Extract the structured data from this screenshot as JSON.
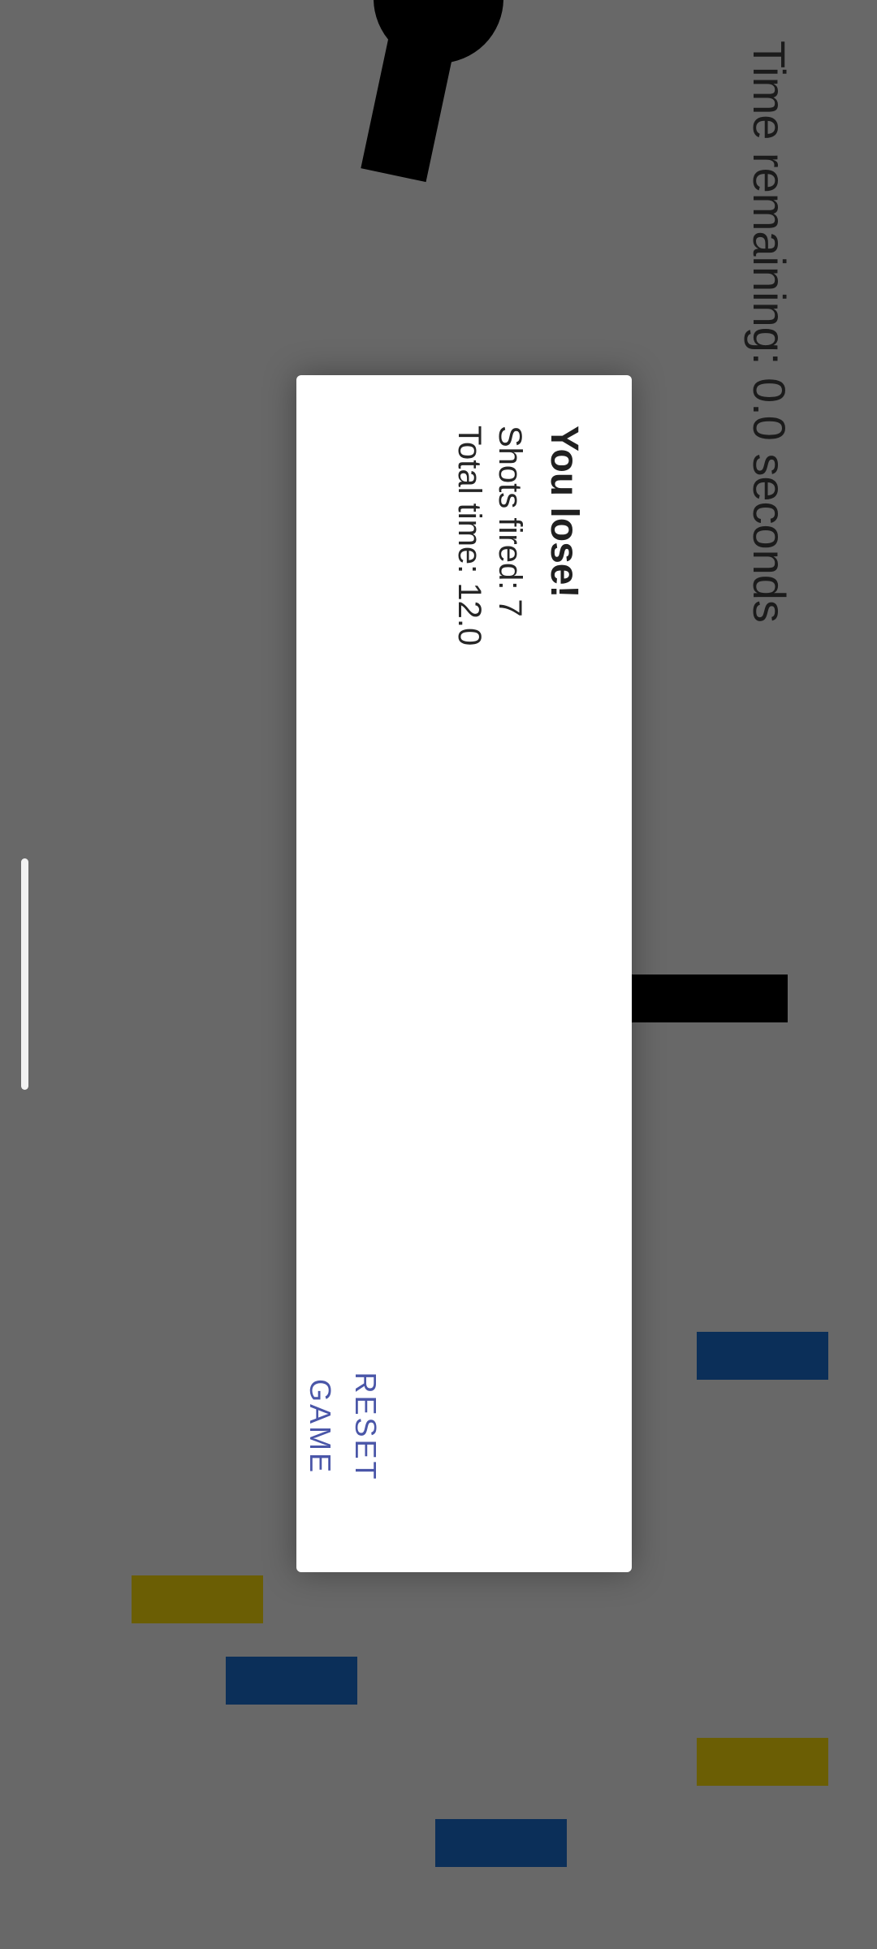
{
  "game": {
    "timer_label": "Time remaining: 0.0 seconds"
  },
  "dialog": {
    "title": "You lose!",
    "shots_label": "Shots fired:",
    "shots_value": "7",
    "time_label": "Total time:",
    "time_value": "12.0",
    "reset_label": "RESET GAME"
  },
  "colors": {
    "background": "#686868",
    "block_blue": "#0b2f59",
    "block_olive": "#6b5e04",
    "button_text": "#4a56a8"
  }
}
